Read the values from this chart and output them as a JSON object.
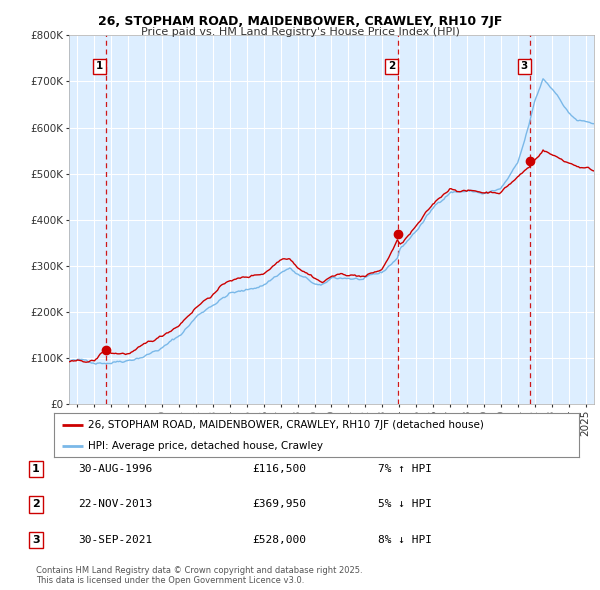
{
  "title1": "26, STOPHAM ROAD, MAIDENBOWER, CRAWLEY, RH10 7JF",
  "title2": "Price paid vs. HM Land Registry's House Price Index (HPI)",
  "background_color": "#ffffff",
  "plot_bg_color": "#ddeeff",
  "hpi_color": "#7ab8e8",
  "price_color": "#cc0000",
  "vline_color": "#cc0000",
  "sale_points": [
    {
      "date_num": 1996.66,
      "price": 116500,
      "label": "1"
    },
    {
      "date_num": 2013.92,
      "price": 369950,
      "label": "2"
    },
    {
      "date_num": 2021.75,
      "price": 528000,
      "label": "3"
    }
  ],
  "legend_entries": [
    "26, STOPHAM ROAD, MAIDENBOWER, CRAWLEY, RH10 7JF (detached house)",
    "HPI: Average price, detached house, Crawley"
  ],
  "table_rows": [
    {
      "num": "1",
      "date": "30-AUG-1996",
      "price": "£116,500",
      "hpi": "7% ↑ HPI"
    },
    {
      "num": "2",
      "date": "22-NOV-2013",
      "price": "£369,950",
      "hpi": "5% ↓ HPI"
    },
    {
      "num": "3",
      "date": "30-SEP-2021",
      "price": "£528,000",
      "hpi": "8% ↓ HPI"
    }
  ],
  "footer": "Contains HM Land Registry data © Crown copyright and database right 2025.\nThis data is licensed under the Open Government Licence v3.0.",
  "ylim": [
    0,
    800000
  ],
  "xlim_start": 1994.5,
  "xlim_end": 2025.5
}
